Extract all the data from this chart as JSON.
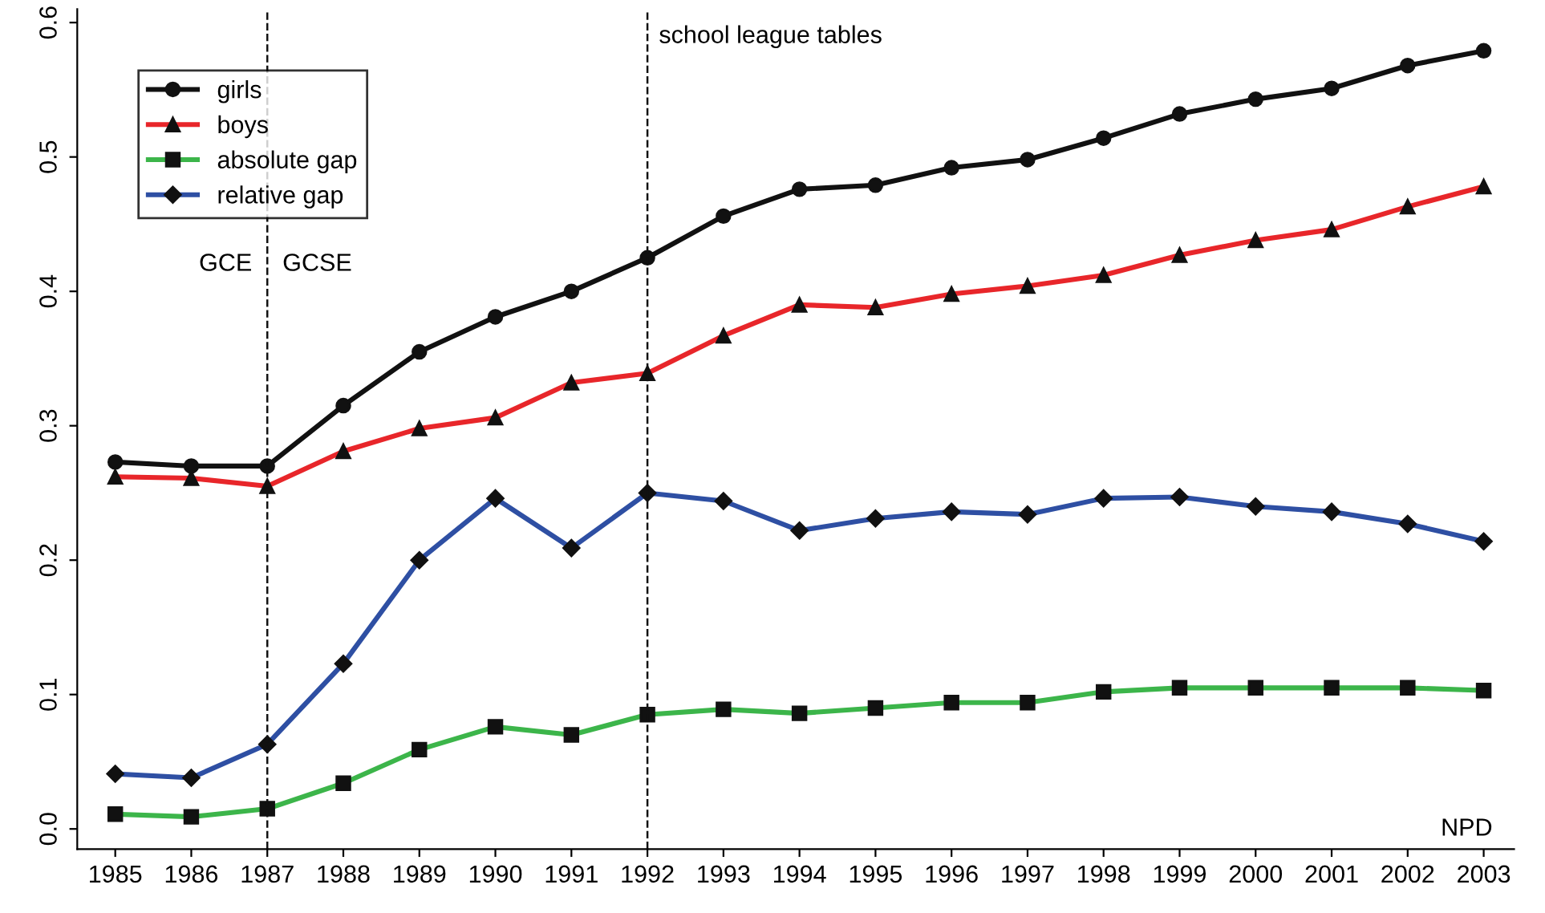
{
  "chart_data": {
    "type": "line",
    "x": [
      1985,
      1986,
      1987,
      1988,
      1989,
      1990,
      1991,
      1992,
      1993,
      1994,
      1995,
      1996,
      1997,
      1998,
      1999,
      2000,
      2001,
      2002,
      2003
    ],
    "series": [
      {
        "name": "girls",
        "color": "#111111",
        "marker": "circle",
        "values": [
          0.273,
          0.27,
          0.27,
          0.315,
          0.355,
          0.381,
          0.4,
          0.425,
          0.456,
          0.476,
          0.479,
          0.492,
          0.498,
          0.514,
          0.532,
          0.543,
          0.551,
          0.568,
          0.579
        ]
      },
      {
        "name": "boys",
        "color": "#e8262a",
        "marker": "triangle",
        "values": [
          0.262,
          0.261,
          0.255,
          0.281,
          0.298,
          0.306,
          0.332,
          0.339,
          0.367,
          0.39,
          0.388,
          0.398,
          0.404,
          0.412,
          0.427,
          0.438,
          0.446,
          0.463,
          0.478
        ]
      },
      {
        "name": "absolute gap",
        "color": "#3cb54a",
        "marker": "square",
        "values": [
          0.011,
          0.009,
          0.015,
          0.034,
          0.059,
          0.076,
          0.07,
          0.085,
          0.089,
          0.086,
          0.09,
          0.094,
          0.094,
          0.102,
          0.105,
          0.105,
          0.105,
          0.105,
          0.103
        ]
      },
      {
        "name": "relative gap",
        "color": "#2e4fa3",
        "marker": "diamond",
        "values": [
          0.041,
          0.038,
          0.063,
          0.123,
          0.2,
          0.246,
          0.209,
          0.25,
          0.244,
          0.222,
          0.231,
          0.236,
          0.234,
          0.246,
          0.247,
          0.24,
          0.236,
          0.227,
          0.214
        ]
      }
    ],
    "xlim": [
      1984.5,
      2003.4
    ],
    "ylim": [
      -0.015,
      0.61
    ],
    "xticks": [
      1985,
      1986,
      1987,
      1988,
      1989,
      1990,
      1991,
      1992,
      1993,
      1994,
      1995,
      1996,
      1997,
      1998,
      1999,
      2000,
      2001,
      2002,
      2003
    ],
    "yticks": [
      {
        "value": 0,
        "label": "0.0"
      },
      0.1,
      0.2,
      0.3,
      0.4,
      0.5,
      0.6
    ],
    "ref_lines": [
      {
        "axis": "x",
        "value": 1987,
        "color": "#111111",
        "line_style": "dashed"
      },
      {
        "axis": "x",
        "value": 1992,
        "label": "school league tables",
        "color": "#111111",
        "line_style": "dashed"
      }
    ],
    "annotations": [
      "GCE",
      "GCSE",
      "NPD"
    ],
    "legend": "top left",
    "grid": false,
    "line_style": "solid"
  }
}
